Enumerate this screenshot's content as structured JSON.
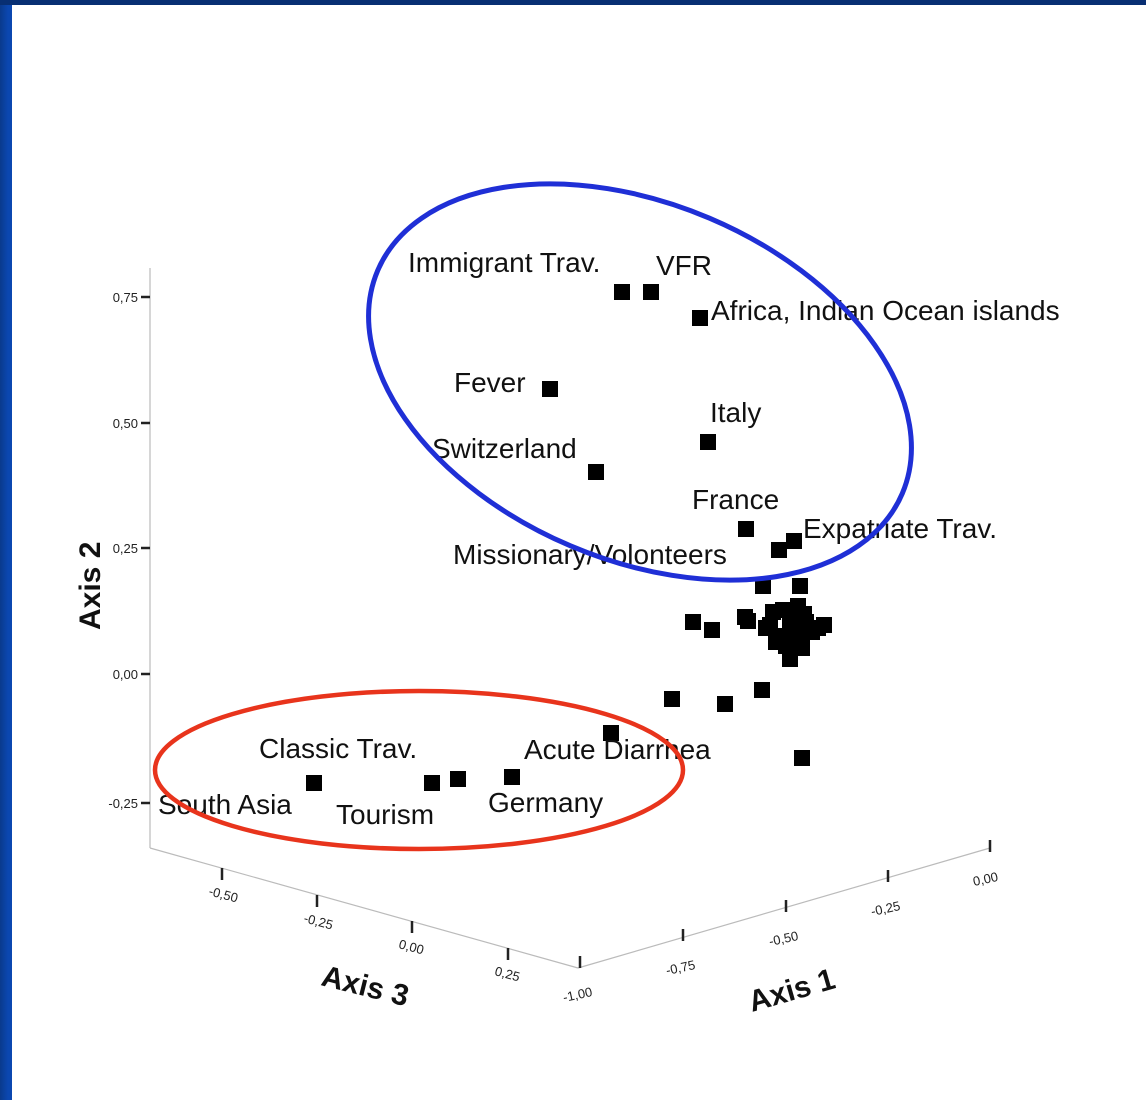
{
  "chart_data": {
    "type": "scatter",
    "subtype": "3d-scatter",
    "axes": {
      "axis1": {
        "label": "Axis 1",
        "ticks": [
          "-1,00",
          "-0,75",
          "-0,50",
          "-0,25",
          "0,00"
        ],
        "range": [
          -1.0,
          0.0
        ]
      },
      "axis2": {
        "label": "Axis 2",
        "ticks": [
          "-0,25",
          "0,00",
          "0,25",
          "0,50",
          "0,75"
        ],
        "range": [
          -0.25,
          0.75
        ]
      },
      "axis3": {
        "label": "Axis 3",
        "ticks": [
          "-0,50",
          "-0,25",
          "0,00",
          "0,25"
        ],
        "range": [
          -0.5,
          0.25
        ]
      }
    },
    "labels": [
      {
        "text": "Immigrant Trav."
      },
      {
        "text": "VFR"
      },
      {
        "text": "Africa, Indian Ocean islands"
      },
      {
        "text": "Fever"
      },
      {
        "text": "Italy"
      },
      {
        "text": "Switzerland"
      },
      {
        "text": "France"
      },
      {
        "text": "Expatriate Trav."
      },
      {
        "text": "Missionary/Volonteers"
      },
      {
        "text": "Classic Trav."
      },
      {
        "text": "Acute Diarrhea"
      },
      {
        "text": "South Asia"
      },
      {
        "text": "Tourism"
      },
      {
        "text": "Germany"
      }
    ],
    "groups": [
      {
        "outline_color": "#1f2fd6"
      },
      {
        "outline_color": "#e8341c"
      }
    ],
    "grid": false,
    "marker_color": "#000000"
  }
}
